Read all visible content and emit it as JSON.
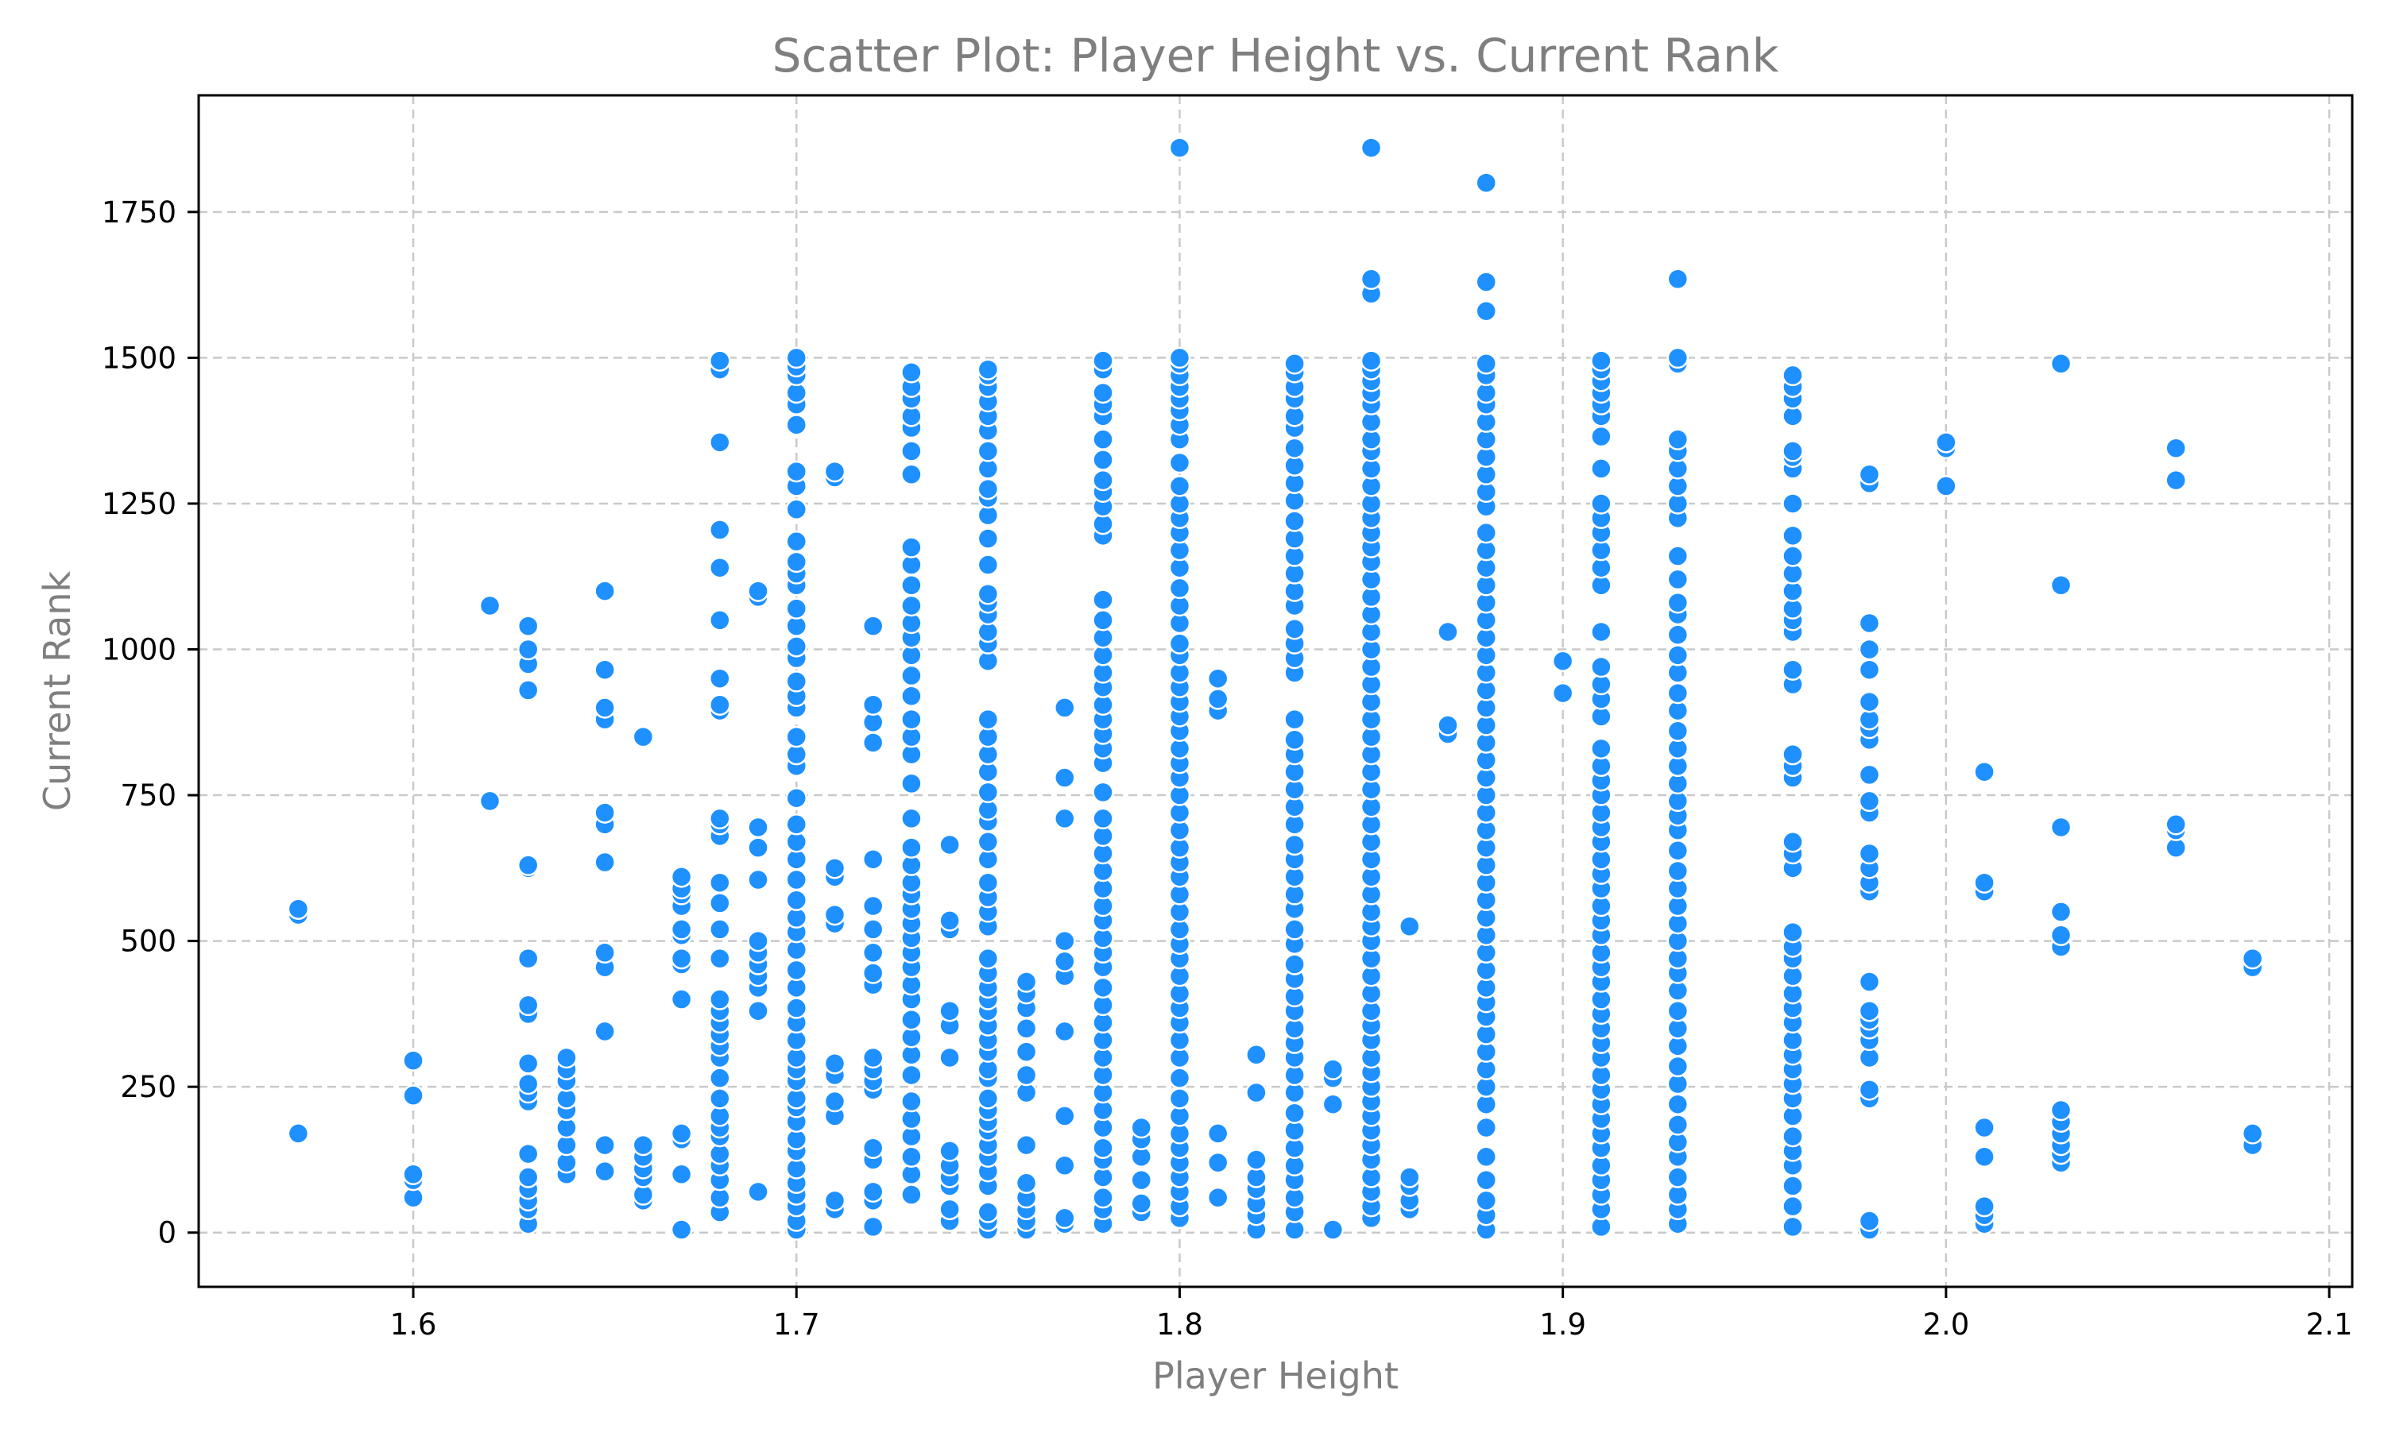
{
  "chart_data": {
    "type": "scatter",
    "title": "Scatter Plot: Player Height vs. Current Rank",
    "xlabel": "Player Height",
    "ylabel": "Current Rank",
    "xlim": [
      1.544,
      2.106
    ],
    "ylim": [
      -93,
      1950
    ],
    "grid": true,
    "legend": "none",
    "colors": {
      "marker": "#1e90ff",
      "marker_edge": "#ffffff",
      "title_text": "#7f7f7f",
      "axis_label_text": "#7f7f7f",
      "tick_text": "#000000",
      "grid": "#c9c9c9",
      "frame": "#000000"
    },
    "x_ticks": [
      {
        "value": 1.6,
        "label": "1.6"
      },
      {
        "value": 1.7,
        "label": "1.7"
      },
      {
        "value": 1.8,
        "label": "1.8"
      },
      {
        "value": 1.9,
        "label": "1.9"
      },
      {
        "value": 2.0,
        "label": "2.0"
      },
      {
        "value": 2.1,
        "label": "2.1"
      }
    ],
    "y_ticks": [
      {
        "value": 0,
        "label": "0"
      },
      {
        "value": 250,
        "label": "250"
      },
      {
        "value": 500,
        "label": "500"
      },
      {
        "value": 750,
        "label": "750"
      },
      {
        "value": 1000,
        "label": "1000"
      },
      {
        "value": 1250,
        "label": "1250"
      },
      {
        "value": 1500,
        "label": "1500"
      },
      {
        "value": 1750,
        "label": "1750"
      }
    ],
    "point_groups": [
      {
        "x": 1.57,
        "y": [
          170,
          545,
          555
        ]
      },
      {
        "x": 1.6,
        "y": [
          60,
          90,
          100,
          235,
          295
        ]
      },
      {
        "x": 1.62,
        "y": [
          740,
          1075
        ]
      },
      {
        "x": 1.63,
        "y": [
          15,
          40,
          55,
          75,
          95,
          135,
          225,
          240,
          255,
          290,
          375,
          390,
          470,
          625,
          630,
          930,
          975,
          1000,
          1040
        ]
      },
      {
        "x": 1.64,
        "y": [
          100,
          120,
          150,
          180,
          210,
          230,
          260,
          280,
          300
        ]
      },
      {
        "x": 1.65,
        "y": [
          105,
          150,
          345,
          455,
          480,
          635,
          700,
          720,
          880,
          900,
          965,
          1100
        ]
      },
      {
        "x": 1.66,
        "y": [
          55,
          65,
          95,
          110,
          130,
          150,
          850
        ]
      },
      {
        "x": 1.67,
        "y": [
          5,
          100,
          160,
          170,
          400,
          460,
          470,
          510,
          520,
          560,
          580,
          590,
          610
        ]
      },
      {
        "x": 1.68,
        "y": [
          35,
          60,
          90,
          115,
          135,
          165,
          180,
          200,
          230,
          265,
          300,
          320,
          340,
          360,
          380,
          400,
          470,
          520,
          565,
          600,
          680,
          700,
          710,
          895,
          905,
          950,
          1050,
          1140,
          1205,
          1355,
          1480,
          1495
        ]
      },
      {
        "x": 1.69,
        "y": [
          70,
          380,
          420,
          440,
          460,
          480,
          500,
          605,
          660,
          695,
          1090,
          1100
        ]
      },
      {
        "x": 1.7,
        "y": [
          5,
          20,
          45,
          65,
          85,
          110,
          140,
          160,
          190,
          215,
          230,
          260,
          280,
          300,
          330,
          360,
          385,
          420,
          450,
          485,
          515,
          540,
          570,
          605,
          640,
          670,
          700,
          745,
          800,
          820,
          850,
          900,
          920,
          945,
          985,
          1005,
          1040,
          1070,
          1110,
          1130,
          1150,
          1185,
          1240,
          1280,
          1305,
          1385,
          1420,
          1440,
          1470,
          1485,
          1500
        ]
      },
      {
        "x": 1.71,
        "y": [
          40,
          55,
          200,
          225,
          270,
          290,
          530,
          545,
          610,
          625,
          1295,
          1305
        ]
      },
      {
        "x": 1.72,
        "y": [
          10,
          55,
          70,
          125,
          145,
          245,
          260,
          280,
          300,
          425,
          445,
          480,
          520,
          560,
          640,
          840,
          875,
          905,
          1040
        ]
      },
      {
        "x": 1.73,
        "y": [
          65,
          100,
          130,
          165,
          195,
          225,
          270,
          305,
          335,
          365,
          400,
          425,
          455,
          480,
          505,
          530,
          555,
          580,
          600,
          630,
          660,
          710,
          770,
          820,
          850,
          880,
          920,
          955,
          990,
          1020,
          1045,
          1075,
          1110,
          1145,
          1175,
          1300,
          1340,
          1380,
          1400,
          1430,
          1450,
          1475
        ]
      },
      {
        "x": 1.74,
        "y": [
          20,
          40,
          80,
          95,
          115,
          140,
          300,
          355,
          380,
          520,
          535,
          665
        ]
      },
      {
        "x": 1.75,
        "y": [
          5,
          20,
          35,
          80,
          105,
          130,
          150,
          175,
          190,
          210,
          230,
          265,
          280,
          310,
          330,
          355,
          380,
          400,
          420,
          445,
          470,
          525,
          550,
          575,
          600,
          640,
          670,
          705,
          725,
          755,
          790,
          820,
          850,
          880,
          980,
          1010,
          1030,
          1060,
          1080,
          1095,
          1145,
          1190,
          1230,
          1260,
          1275,
          1310,
          1340,
          1375,
          1400,
          1425,
          1450,
          1470,
          1480
        ]
      },
      {
        "x": 1.76,
        "y": [
          5,
          20,
          40,
          60,
          85,
          150,
          240,
          270,
          310,
          350,
          385,
          410,
          430
        ]
      },
      {
        "x": 1.77,
        "y": [
          15,
          25,
          115,
          200,
          345,
          440,
          465,
          500,
          710,
          780,
          900
        ]
      },
      {
        "x": 1.78,
        "y": [
          15,
          40,
          60,
          95,
          125,
          145,
          180,
          210,
          240,
          270,
          300,
          330,
          360,
          390,
          420,
          455,
          480,
          505,
          535,
          560,
          590,
          620,
          650,
          680,
          710,
          755,
          805,
          830,
          855,
          880,
          905,
          935,
          960,
          990,
          1020,
          1050,
          1085,
          1195,
          1215,
          1245,
          1270,
          1290,
          1325,
          1360,
          1400,
          1420,
          1440,
          1480,
          1495
        ]
      },
      {
        "x": 1.79,
        "y": [
          35,
          50,
          90,
          130,
          160,
          180
        ]
      },
      {
        "x": 1.8,
        "y": [
          25,
          45,
          70,
          95,
          120,
          145,
          170,
          200,
          230,
          265,
          300,
          330,
          360,
          385,
          410,
          440,
          470,
          495,
          520,
          550,
          580,
          610,
          635,
          660,
          690,
          720,
          750,
          780,
          805,
          830,
          860,
          885,
          910,
          935,
          960,
          990,
          1010,
          1045,
          1075,
          1105,
          1140,
          1170,
          1200,
          1225,
          1250,
          1280,
          1320,
          1360,
          1385,
          1410,
          1430,
          1450,
          1470,
          1490,
          1500,
          1860
        ]
      },
      {
        "x": 1.81,
        "y": [
          60,
          120,
          170,
          895,
          915,
          950
        ]
      },
      {
        "x": 1.82,
        "y": [
          5,
          30,
          50,
          75,
          95,
          125,
          240,
          305
        ]
      },
      {
        "x": 1.83,
        "y": [
          5,
          35,
          60,
          90,
          115,
          145,
          175,
          205,
          240,
          270,
          300,
          325,
          350,
          380,
          405,
          435,
          460,
          495,
          520,
          555,
          580,
          610,
          640,
          665,
          700,
          730,
          760,
          790,
          820,
          845,
          880,
          960,
          985,
          1010,
          1035,
          1075,
          1100,
          1130,
          1160,
          1190,
          1220,
          1255,
          1285,
          1315,
          1345,
          1380,
          1400,
          1430,
          1450,
          1475,
          1490
        ]
      },
      {
        "x": 1.84,
        "y": [
          5,
          220,
          265,
          280
        ]
      },
      {
        "x": 1.85,
        "y": [
          25,
          45,
          70,
          95,
          125,
          150,
          175,
          200,
          225,
          250,
          275,
          300,
          330,
          355,
          380,
          410,
          440,
          470,
          500,
          525,
          550,
          580,
          610,
          640,
          670,
          700,
          730,
          760,
          790,
          820,
          850,
          880,
          910,
          940,
          970,
          1000,
          1030,
          1060,
          1090,
          1120,
          1150,
          1175,
          1200,
          1225,
          1250,
          1280,
          1310,
          1340,
          1360,
          1390,
          1420,
          1440,
          1460,
          1480,
          1495,
          1610,
          1635,
          1860
        ]
      },
      {
        "x": 1.86,
        "y": [
          40,
          55,
          80,
          95,
          525
        ]
      },
      {
        "x": 1.87,
        "y": [
          855,
          870,
          1030
        ]
      },
      {
        "x": 1.88,
        "y": [
          5,
          30,
          55,
          90,
          130,
          180,
          220,
          250,
          280,
          310,
          340,
          370,
          395,
          420,
          450,
          480,
          510,
          540,
          570,
          600,
          630,
          660,
          690,
          720,
          750,
          780,
          810,
          840,
          870,
          900,
          930,
          960,
          990,
          1020,
          1050,
          1080,
          1110,
          1140,
          1170,
          1200,
          1245,
          1270,
          1300,
          1330,
          1360,
          1390,
          1420,
          1440,
          1470,
          1490,
          1580,
          1630,
          1800
        ]
      },
      {
        "x": 1.9,
        "y": [
          925,
          980
        ]
      },
      {
        "x": 1.91,
        "y": [
          10,
          40,
          65,
          90,
          115,
          145,
          170,
          195,
          220,
          245,
          270,
          300,
          325,
          350,
          375,
          400,
          430,
          455,
          480,
          510,
          535,
          560,
          590,
          615,
          640,
          670,
          695,
          720,
          750,
          775,
          800,
          830,
          885,
          915,
          940,
          970,
          1030,
          1110,
          1140,
          1170,
          1200,
          1225,
          1250,
          1310,
          1365,
          1400,
          1420,
          1440,
          1460,
          1480,
          1495
        ]
      },
      {
        "x": 1.93,
        "y": [
          15,
          40,
          65,
          95,
          130,
          155,
          185,
          220,
          255,
          285,
          320,
          350,
          380,
          415,
          445,
          470,
          500,
          530,
          560,
          590,
          620,
          655,
          690,
          715,
          740,
          770,
          800,
          830,
          860,
          895,
          925,
          960,
          990,
          1025,
          1060,
          1080,
          1120,
          1160,
          1225,
          1250,
          1280,
          1310,
          1340,
          1360,
          1490,
          1500,
          1635
        ]
      },
      {
        "x": 1.96,
        "y": [
          10,
          45,
          80,
          115,
          140,
          165,
          200,
          230,
          255,
          280,
          305,
          330,
          360,
          385,
          410,
          440,
          470,
          490,
          515,
          625,
          650,
          670,
          780,
          800,
          820,
          940,
          965,
          1030,
          1050,
          1070,
          1100,
          1130,
          1160,
          1195,
          1250,
          1310,
          1330,
          1340,
          1400,
          1430,
          1450,
          1470
        ]
      },
      {
        "x": 1.98,
        "y": [
          5,
          20,
          230,
          245,
          300,
          330,
          350,
          365,
          380,
          430,
          585,
          600,
          625,
          650,
          720,
          740,
          785,
          845,
          865,
          880,
          910,
          965,
          1000,
          1045,
          1285,
          1300
        ]
      },
      {
        "x": 2.0,
        "y": [
          1280,
          1345,
          1355
        ]
      },
      {
        "x": 2.01,
        "y": [
          15,
          30,
          45,
          130,
          180,
          585,
          600,
          790
        ]
      },
      {
        "x": 2.03,
        "y": [
          120,
          135,
          150,
          170,
          190,
          210,
          490,
          510,
          550,
          695,
          1110,
          1490
        ]
      },
      {
        "x": 2.06,
        "y": [
          660,
          690,
          700,
          1290,
          1345
        ]
      },
      {
        "x": 2.08,
        "y": [
          150,
          170,
          455,
          470
        ]
      }
    ]
  }
}
